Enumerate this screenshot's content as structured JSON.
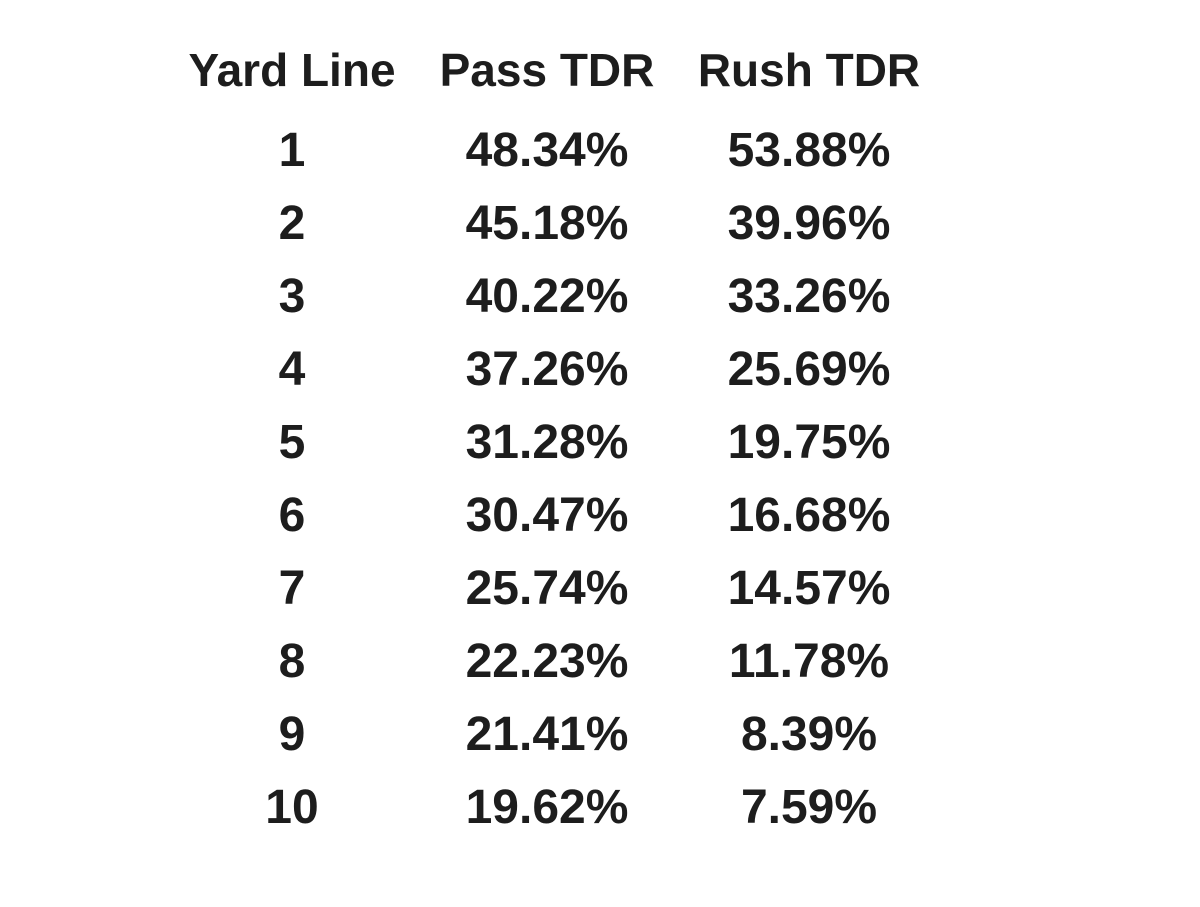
{
  "chart_data": {
    "type": "table",
    "columns": [
      "Yard Line",
      "Pass TDR",
      "Rush TDR"
    ],
    "rows": [
      [
        "1",
        "48.34%",
        "53.88%"
      ],
      [
        "2",
        "45.18%",
        "39.96%"
      ],
      [
        "3",
        "40.22%",
        "33.26%"
      ],
      [
        "4",
        "37.26%",
        "25.69%"
      ],
      [
        "5",
        "31.28%",
        "19.75%"
      ],
      [
        "6",
        "30.47%",
        "16.68%"
      ],
      [
        "7",
        "25.74%",
        "14.57%"
      ],
      [
        "8",
        "22.23%",
        "11.78%"
      ],
      [
        "9",
        "21.41%",
        "8.39%"
      ],
      [
        "10",
        "19.62%",
        "7.59%"
      ]
    ],
    "layout": {
      "background_color": "#ffffff",
      "text_color": "#1d1d1d",
      "grid": "off",
      "alignment": "center"
    }
  }
}
